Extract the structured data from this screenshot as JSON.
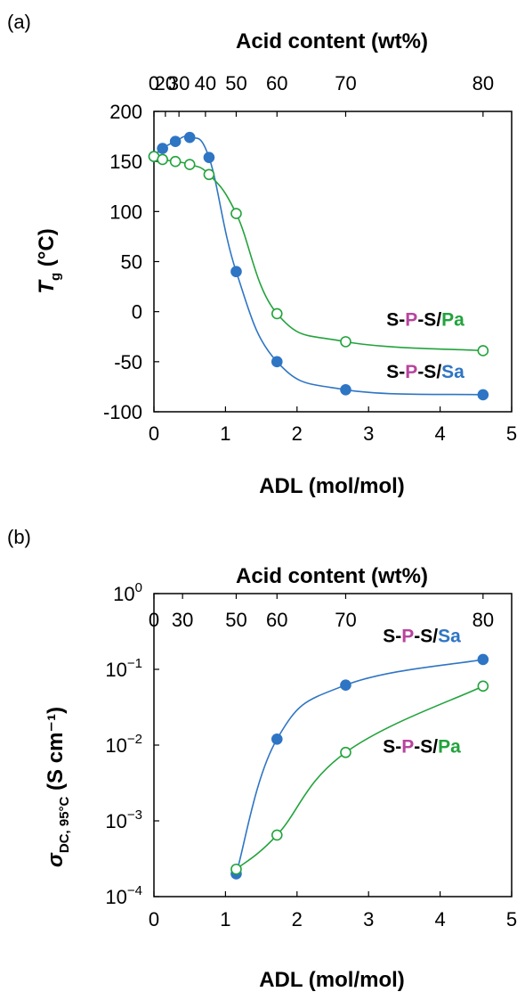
{
  "colors": {
    "sa": "#2e75c4",
    "pa": "#22a33c",
    "p_letter": "#b8449e",
    "frame": "#000000",
    "background": "#ffffff"
  },
  "chart_data": [
    {
      "panel": "(a)",
      "type": "scatter",
      "x_top_label": "Acid content (wt%)",
      "x_top_ticks": [
        {
          "label": "0",
          "adl": 0.0
        },
        {
          "label": "20",
          "adl": 0.16
        },
        {
          "label": "30",
          "adl": 0.35
        },
        {
          "label": "40",
          "adl": 0.72
        },
        {
          "label": "50",
          "adl": 1.15
        },
        {
          "label": "60",
          "adl": 1.72
        },
        {
          "label": "70",
          "adl": 2.68
        },
        {
          "label": "80",
          "adl": 4.6
        }
      ],
      "xlabel": "ADL (mol/mol)",
      "ylabel_main": "T",
      "ylabel_sub": "g",
      "ylabel_unit": " (°C)",
      "xlim": [
        0,
        5
      ],
      "ylim": [
        -100,
        200
      ],
      "x_ticks": [
        0,
        1,
        2,
        3,
        4,
        5
      ],
      "y_ticks": [
        -100,
        -50,
        0,
        50,
        100,
        150,
        200
      ],
      "y_scale": "linear",
      "series": [
        {
          "name": "S-P-S/Sa",
          "name_parts": [
            "S-",
            "P",
            "-S/",
            "Sa"
          ],
          "marker": "filled",
          "x": [
            0.0,
            0.12,
            0.3,
            0.5,
            0.77,
            1.15,
            1.72,
            2.68,
            4.6
          ],
          "y": [
            155,
            163,
            170,
            174,
            154,
            40,
            -50,
            -78,
            -83
          ],
          "legend_anchor_x": 3.25,
          "legend_anchor_y": -66
        },
        {
          "name": "S-P-S/Pa",
          "name_parts": [
            "S-",
            "P",
            "-S/",
            "Pa"
          ],
          "marker": "open",
          "x": [
            0.0,
            0.12,
            0.3,
            0.5,
            0.77,
            1.15,
            1.72,
            2.68,
            4.6
          ],
          "y": [
            155,
            152,
            150,
            147,
            137,
            98,
            -2,
            -30,
            -39
          ],
          "legend_anchor_x": 3.25,
          "legend_anchor_y": -14
        }
      ]
    },
    {
      "panel": "(b)",
      "type": "scatter",
      "x_top_label": "Acid content (wt%)",
      "x_top_ticks": [
        {
          "label": "0",
          "adl": 0.0
        },
        {
          "label": "30",
          "adl": 0.4
        },
        {
          "label": "50",
          "adl": 1.15
        },
        {
          "label": "60",
          "adl": 1.72
        },
        {
          "label": "70",
          "adl": 2.68
        },
        {
          "label": "80",
          "adl": 4.6
        }
      ],
      "xlabel": "ADL (mol/mol)",
      "ylabel_main": "σ",
      "ylabel_sub": "DC, 95°C",
      "ylabel_unit": " (S cm⁻¹)",
      "xlim": [
        0,
        5
      ],
      "ylim": [
        0.0001,
        1
      ],
      "x_ticks": [
        0,
        1,
        2,
        3,
        4,
        5
      ],
      "y_ticks": [
        0.0001,
        0.001,
        0.01,
        0.1,
        1
      ],
      "y_tick_labels": [
        {
          "base": "10",
          "exp": "−4"
        },
        {
          "base": "10",
          "exp": "−3"
        },
        {
          "base": "10",
          "exp": "−2"
        },
        {
          "base": "10",
          "exp": "−1"
        },
        {
          "base": "10",
          "exp": "0"
        }
      ],
      "y_scale": "log",
      "series": [
        {
          "name": "S-P-S/Sa",
          "name_parts": [
            "S-",
            "P",
            "-S/",
            "Sa"
          ],
          "marker": "filled",
          "x": [
            1.15,
            1.72,
            2.68,
            4.6
          ],
          "y": [
            0.0002,
            0.012,
            0.062,
            0.135
          ],
          "legend_anchor_x": 3.2,
          "legend_anchor_y": 0.23
        },
        {
          "name": "S-P-S/Pa",
          "name_parts": [
            "S-",
            "P",
            "-S/",
            "Pa"
          ],
          "marker": "open",
          "x": [
            1.15,
            1.72,
            2.68,
            4.6
          ],
          "y": [
            0.00023,
            0.00065,
            0.008,
            0.06
          ],
          "legend_anchor_x": 3.2,
          "legend_anchor_y": 0.0079
        }
      ]
    }
  ]
}
